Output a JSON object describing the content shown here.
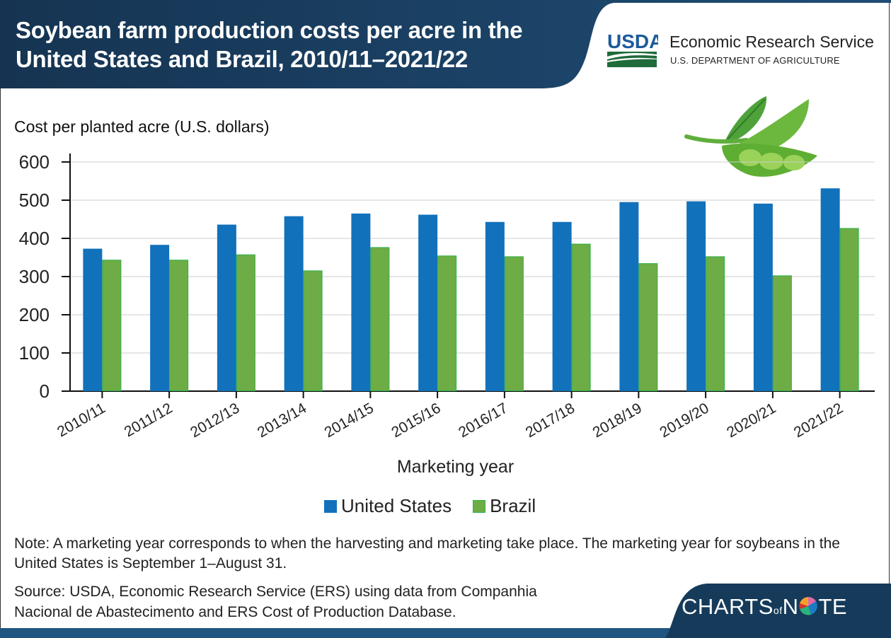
{
  "header": {
    "title_line1": "Soybean farm production costs per acre in the",
    "title_line2": "United States and Brazil, 2010/11–2021/22",
    "org_logo": "USDA",
    "org_name": "Economic Research Service",
    "org_sub": "U.S. DEPARTMENT OF AGRICULTURE"
  },
  "colors": {
    "header_bg": "#1a3d5e",
    "us": "#1271bb",
    "brazil": "#6eac46",
    "brazil_edge": "#2db34a",
    "grid": "#cccccc"
  },
  "chart_data": {
    "type": "bar",
    "title": "Soybean farm production costs per acre in the United States and Brazil, 2010/11–2021/22",
    "ylabel": "Cost per planted acre (U.S. dollars)",
    "xlabel": "Marketing year",
    "ylim": [
      0,
      600
    ],
    "yticks": [
      0,
      100,
      200,
      300,
      400,
      500,
      600
    ],
    "grid": true,
    "legend_position": "bottom-center",
    "categories": [
      "2010/11",
      "2011/12",
      "2012/13",
      "2013/14",
      "2014/15",
      "2015/16",
      "2016/17",
      "2017/18",
      "2018/19",
      "2019/20",
      "2020/21",
      "2021/22"
    ],
    "series": [
      {
        "name": "United States",
        "values": [
          373,
          383,
          436,
          458,
          465,
          462,
          443,
          443,
          495,
          497,
          491,
          531
        ]
      },
      {
        "name": "Brazil",
        "values": [
          344,
          344,
          358,
          316,
          377,
          355,
          353,
          386,
          335,
          353,
          303,
          427
        ]
      }
    ]
  },
  "legend": {
    "us": "United States",
    "brazil": "Brazil"
  },
  "footer": {
    "note": "Note: A marketing year corresponds to when the harvesting and marketing take place. The marketing year for soybeans in the United States is September 1–August 31.",
    "source_line1": "Source: USDA, Economic Research Service (ERS) using data from Companhia",
    "source_line2": "Nacional de Abastecimento and ERS Cost of Production Database.",
    "brand_a": "CHARTS",
    "brand_of": "of",
    "brand_b": "N",
    "brand_c": "TE"
  }
}
